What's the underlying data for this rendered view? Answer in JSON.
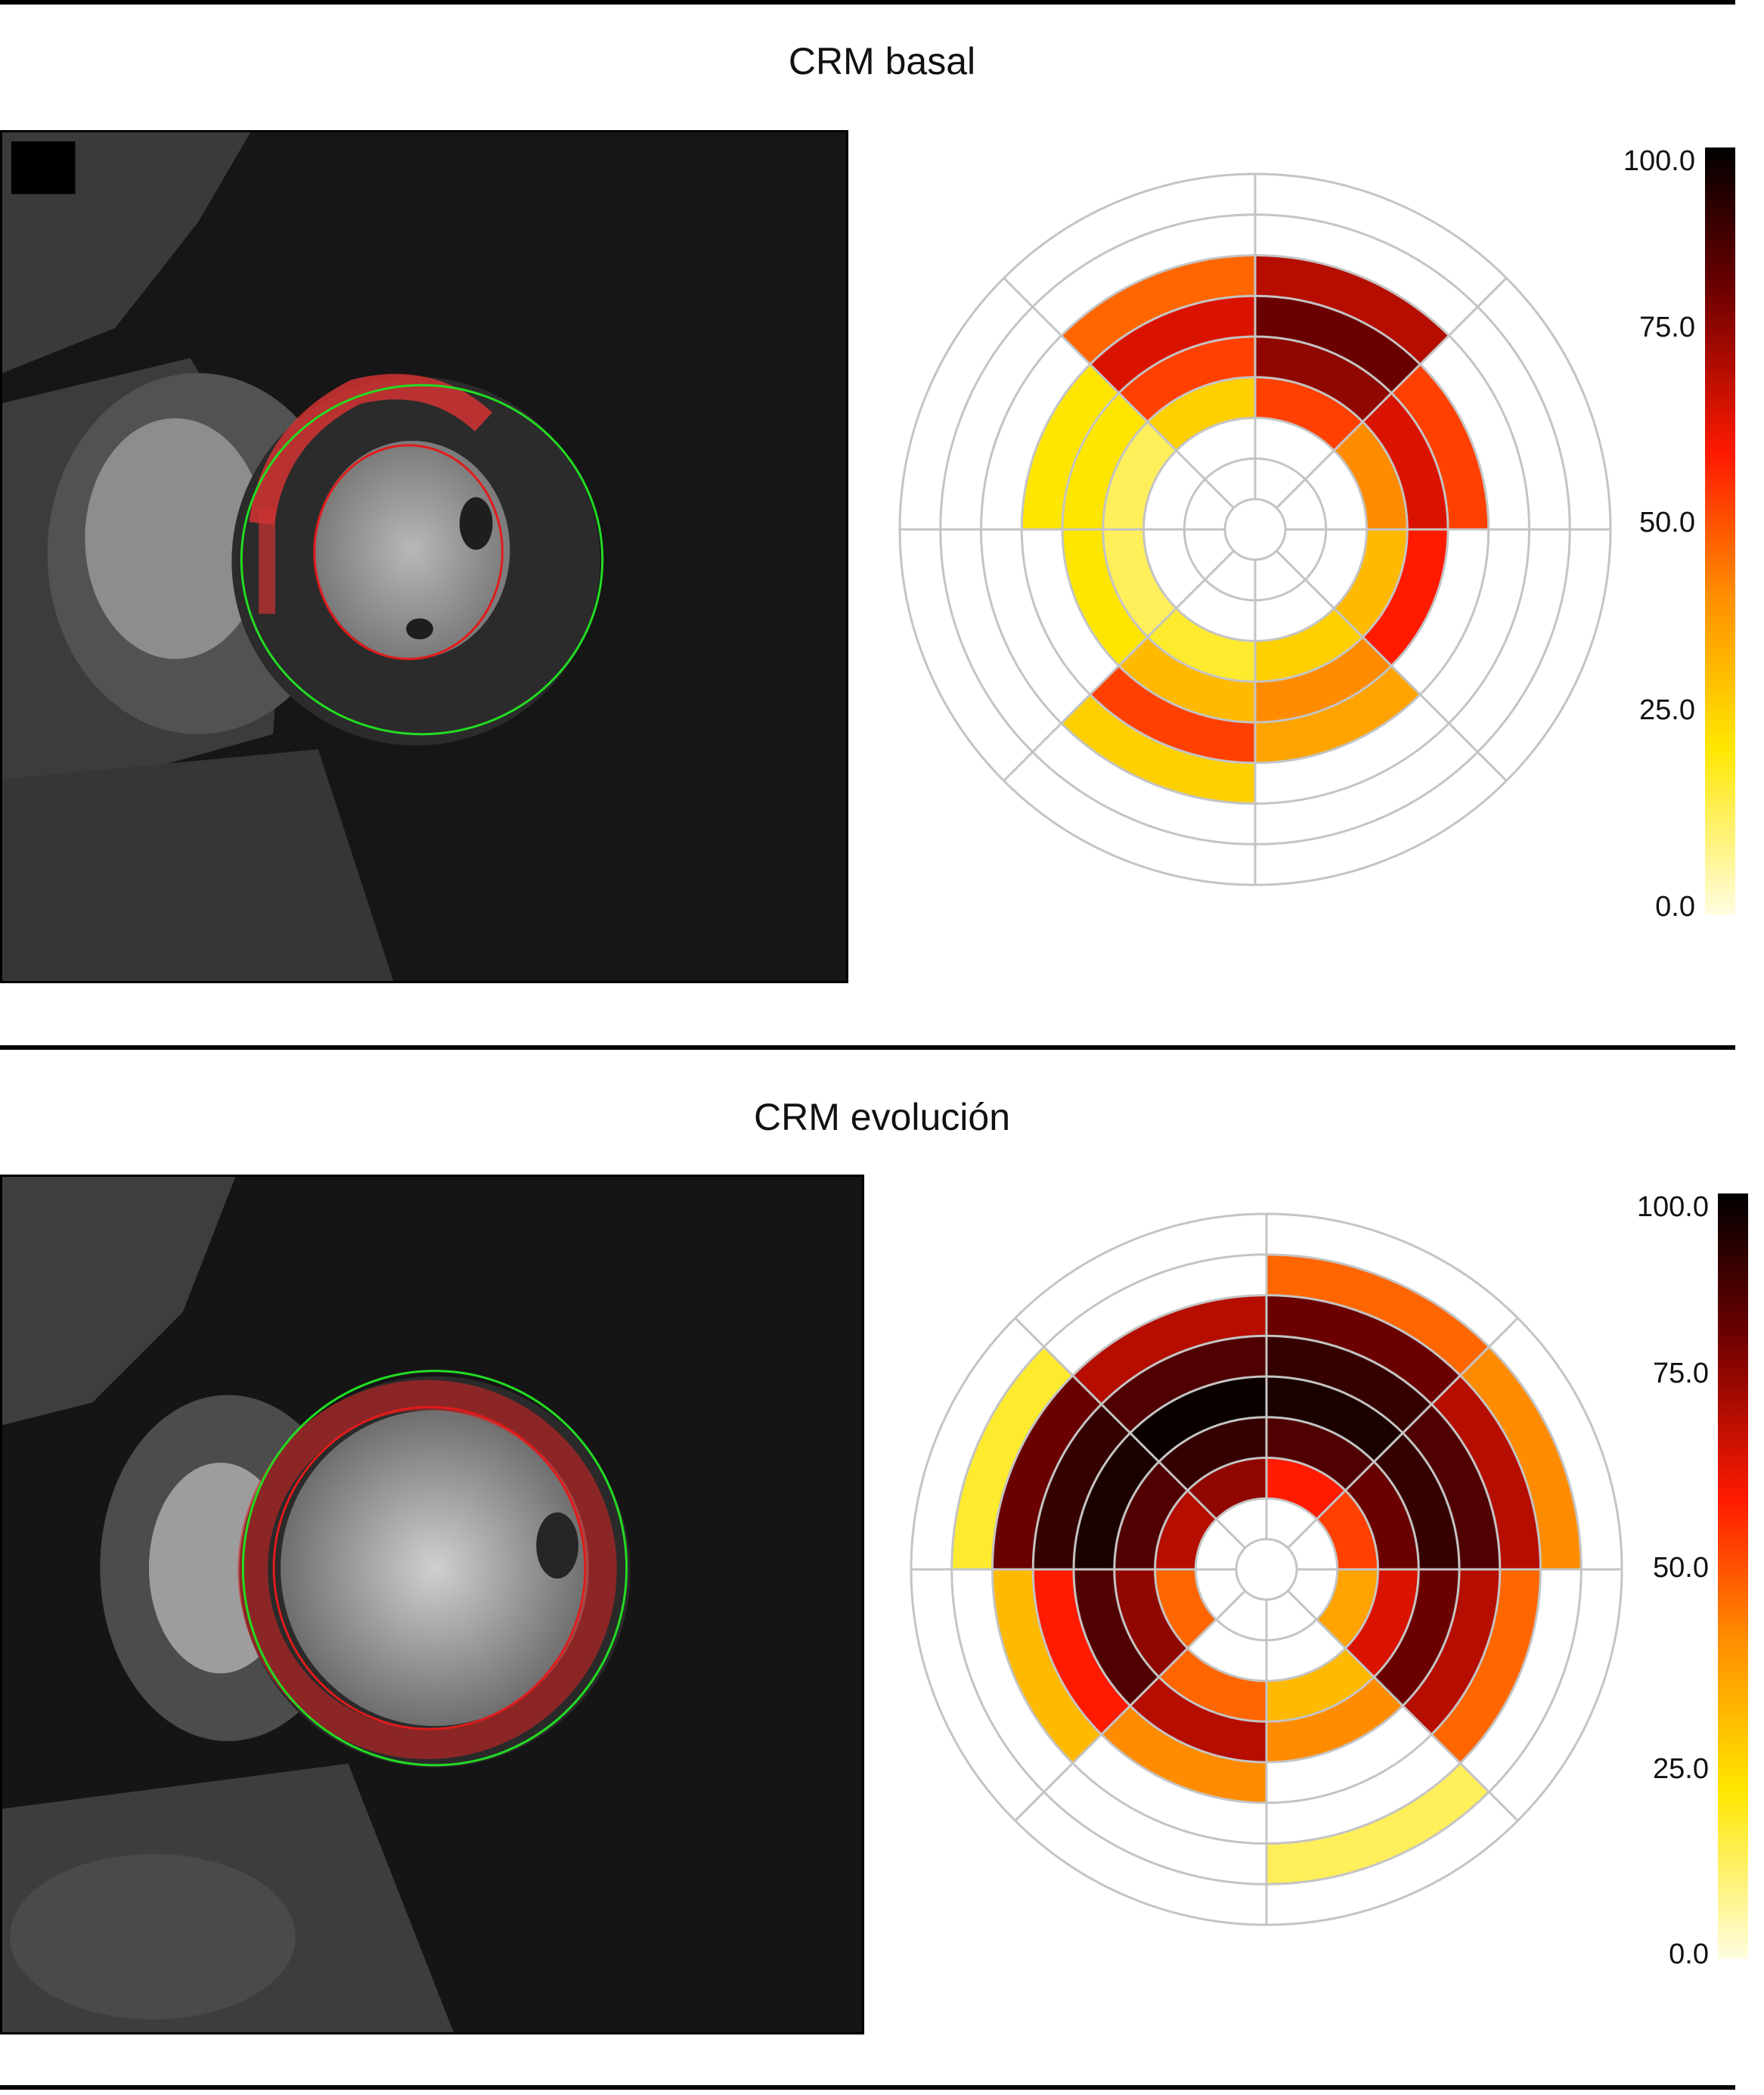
{
  "sections": [
    {
      "title": "CRM basal",
      "colorbar_ticks": [
        "100.0",
        "75.0",
        "50.0",
        "25.0",
        "0.0"
      ],
      "polar_map": {
        "rings": 8,
        "sectors": 8,
        "description_level": "moderate",
        "segments": [
          [
            0,
            2,
            0.15
          ],
          [
            0,
            3,
            0.25
          ],
          [
            1,
            2,
            0.3
          ],
          [
            1,
            3,
            0.55
          ],
          [
            2,
            2,
            0.55
          ],
          [
            2,
            3,
            0.75
          ],
          [
            3,
            2,
            0.45
          ],
          [
            3,
            3,
            0.65
          ],
          [
            4,
            2,
            0.35
          ],
          [
            4,
            3,
            0.6
          ],
          [
            5,
            2,
            0.3
          ],
          [
            5,
            3,
            0.45
          ],
          [
            6,
            2,
            0.2
          ],
          [
            6,
            3,
            0.35
          ],
          [
            7,
            2,
            0.15
          ],
          [
            7,
            3,
            0.25
          ],
          [
            1,
            4,
            0.65
          ],
          [
            2,
            4,
            0.8
          ],
          [
            3,
            4,
            0.55
          ],
          [
            1,
            5,
            0.5
          ],
          [
            2,
            5,
            0.7
          ],
          [
            0,
            4,
            0.25
          ],
          [
            5,
            4,
            0.4
          ],
          [
            6,
            4,
            0.55
          ],
          [
            6,
            5,
            0.3
          ]
        ]
      }
    },
    {
      "title": "CRM evolución",
      "colorbar_ticks": [
        "100.0",
        "75.0",
        "50.0",
        "25.0",
        "0.0"
      ],
      "polar_map": {
        "rings": 8,
        "sectors": 8,
        "description_level": "severe",
        "segments": [
          [
            0,
            1,
            0.7
          ],
          [
            0,
            2,
            0.85
          ],
          [
            0,
            3,
            0.95
          ],
          [
            0,
            4,
            0.9
          ],
          [
            0,
            5,
            0.8
          ],
          [
            1,
            1,
            0.75
          ],
          [
            1,
            2,
            0.9
          ],
          [
            1,
            3,
            0.98
          ],
          [
            1,
            4,
            0.85
          ],
          [
            1,
            5,
            0.7
          ],
          [
            2,
            1,
            0.6
          ],
          [
            2,
            2,
            0.85
          ],
          [
            2,
            3,
            0.95
          ],
          [
            2,
            4,
            0.9
          ],
          [
            2,
            5,
            0.8
          ],
          [
            2,
            6,
            0.5
          ],
          [
            3,
            1,
            0.55
          ],
          [
            3,
            2,
            0.8
          ],
          [
            3,
            3,
            0.9
          ],
          [
            3,
            4,
            0.85
          ],
          [
            3,
            5,
            0.7
          ],
          [
            3,
            6,
            0.45
          ],
          [
            4,
            1,
            0.4
          ],
          [
            4,
            2,
            0.65
          ],
          [
            4,
            3,
            0.8
          ],
          [
            4,
            4,
            0.7
          ],
          [
            4,
            5,
            0.5
          ],
          [
            5,
            2,
            0.35
          ],
          [
            5,
            3,
            0.45
          ],
          [
            6,
            2,
            0.5
          ],
          [
            6,
            3,
            0.7
          ],
          [
            6,
            4,
            0.45
          ],
          [
            7,
            1,
            0.5
          ],
          [
            7,
            2,
            0.75
          ],
          [
            7,
            3,
            0.85
          ],
          [
            7,
            4,
            0.6
          ],
          [
            7,
            5,
            0.35
          ],
          [
            0,
            6,
            0.2
          ],
          [
            5,
            6,
            0.15
          ]
        ]
      }
    }
  ]
}
